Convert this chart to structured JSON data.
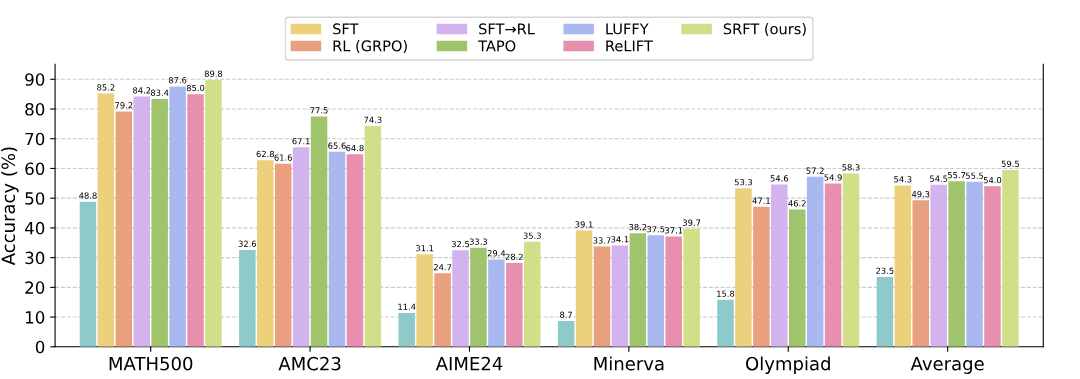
{
  "chart_data": {
    "type": "bar",
    "ylabel": "Accuracy (%)",
    "categories": [
      "MATH500",
      "AMC23",
      "AIME24",
      "Minerva",
      "Olympiad",
      "Average"
    ],
    "series": [
      {
        "color": "#8fcacb",
        "values": [
          48.8,
          32.6,
          11.4,
          8.7,
          15.8,
          23.5
        ],
        "value_labels": [
          "48.8",
          "32.6",
          "11.4",
          "8.7",
          "15.8",
          "23.5"
        ]
      },
      {
        "name": "SFT",
        "color": "#ecd07c",
        "values": [
          85.2,
          62.8,
          31.1,
          39.1,
          53.3,
          54.3
        ],
        "value_labels": [
          "85.2",
          "62.8",
          "31.1",
          "39.1",
          "53.3",
          "54.3"
        ]
      },
      {
        "name": "RL (GRPO)",
        "color": "#e8a07e",
        "values": [
          79.2,
          61.6,
          24.7,
          33.7,
          47.1,
          49.3
        ],
        "value_labels": [
          "79.2",
          "61.6",
          "24.7",
          "33.7",
          "47.1",
          "49.3"
        ]
      },
      {
        "name": "SFT→RL",
        "color": "#d2b3ee",
        "values": [
          84.2,
          67.1,
          32.5,
          34.1,
          54.6,
          54.5
        ],
        "value_labels": [
          "84.2",
          "67.1",
          "32.5",
          "34.1",
          "54.6",
          "54.5"
        ]
      },
      {
        "name": "TAPO",
        "color": "#9fc46c",
        "values": [
          83.4,
          77.5,
          33.3,
          38.2,
          46.2,
          55.7
        ],
        "value_labels": [
          "83.4",
          "77.5",
          "33.3",
          "38.2",
          "46.2",
          "55.7"
        ]
      },
      {
        "name": "LUFFY",
        "color": "#a9b9f0",
        "values": [
          87.6,
          65.6,
          29.4,
          37.5,
          57.2,
          55.5
        ],
        "value_labels": [
          "87.6",
          "65.6",
          "29.4",
          "37.5",
          "57.2",
          "55.5"
        ]
      },
      {
        "name": "ReLIFT",
        "color": "#e88fb0",
        "values": [
          85.0,
          64.8,
          28.2,
          37.1,
          54.9,
          54.0
        ],
        "value_labels": [
          "85.0",
          "64.8",
          "28.2",
          "37.1",
          "54.9",
          "54.0"
        ]
      },
      {
        "name": "SRFT (ours)",
        "color": "#d2de88",
        "values": [
          89.8,
          74.3,
          35.3,
          39.7,
          58.3,
          59.5
        ],
        "value_labels": [
          "89.8",
          "74.3",
          "35.3",
          "39.7",
          "58.3",
          "59.5"
        ]
      }
    ],
    "ylim": [
      0,
      95
    ],
    "yticks": [
      0,
      10,
      20,
      30,
      40,
      50,
      60,
      70,
      80,
      90
    ],
    "grid": "y",
    "legend": "top"
  }
}
